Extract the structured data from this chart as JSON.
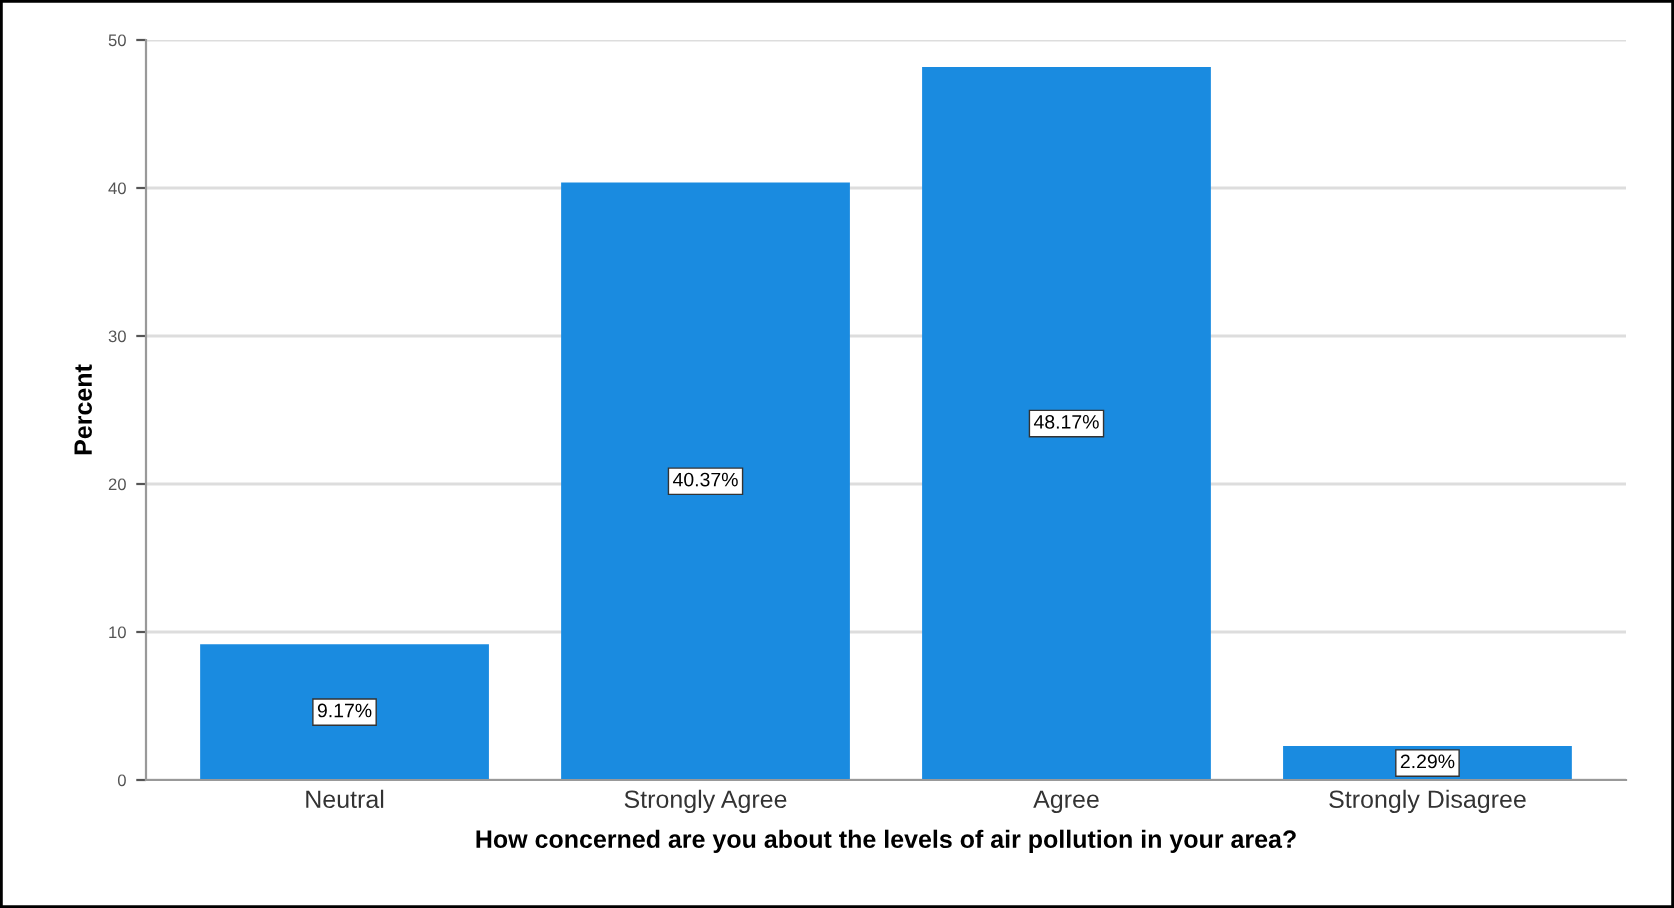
{
  "chart_data": {
    "type": "bar",
    "xlabel": "How concerned are you about the levels of air pollution in your area?",
    "ylabel": "Percent",
    "categories": [
      "Neutral",
      "Strongly Agree",
      "Agree",
      "Strongly Disagree"
    ],
    "values": [
      9.17,
      40.37,
      48.17,
      2.29
    ],
    "value_labels": [
      "9.17%",
      "40.37%",
      "48.17%",
      "2.29%"
    ],
    "color": "#1a8be0",
    "ylim": [
      0,
      50
    ],
    "yticks": [
      0,
      10,
      20,
      30,
      40,
      50
    ],
    "grid": "y"
  }
}
